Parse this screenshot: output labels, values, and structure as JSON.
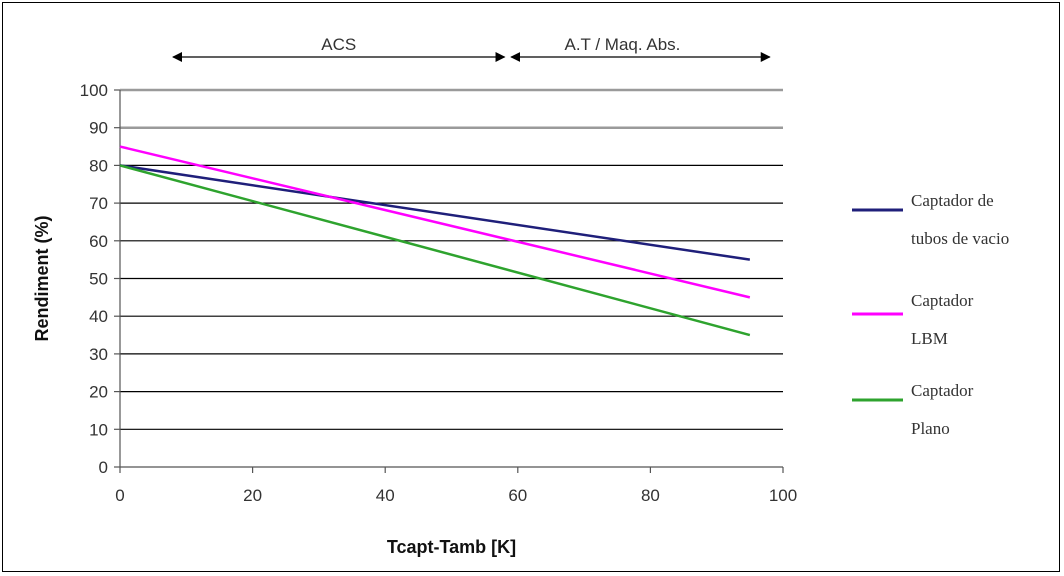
{
  "chart_data": {
    "type": "line",
    "xlabel": "Tcapt-Tamb [K]",
    "ylabel": "Rendiment (%)",
    "xlim": [
      0,
      100
    ],
    "ylim": [
      0,
      100
    ],
    "x_ticks": [
      0,
      20,
      40,
      60,
      80,
      100
    ],
    "y_ticks": [
      0,
      10,
      20,
      30,
      40,
      50,
      60,
      70,
      80,
      90,
      100
    ],
    "grid": "horizontal",
    "legend_position": "right",
    "ranges": [
      {
        "label": "ACS",
        "x_start": 8,
        "x_end": 58
      },
      {
        "label": "A.T / Maq. Abs.",
        "x_start": 59,
        "x_end": 98
      }
    ],
    "series": [
      {
        "name": "Captador de tubos de vacio",
        "legend_lines": [
          "Captador de",
          "tubos de vacio"
        ],
        "color": "#1f1f7a",
        "x": [
          0,
          95
        ],
        "y": [
          80,
          55
        ]
      },
      {
        "name": "Captador LBM",
        "legend_lines": [
          "Captador",
          "LBM"
        ],
        "color": "#ff00ff",
        "x": [
          0,
          95
        ],
        "y": [
          85,
          45
        ]
      },
      {
        "name": "Captador Plano",
        "legend_lines": [
          "Captador",
          "Plano"
        ],
        "color": "#2ea32e",
        "x": [
          0,
          95
        ],
        "y": [
          80,
          35
        ]
      }
    ]
  }
}
